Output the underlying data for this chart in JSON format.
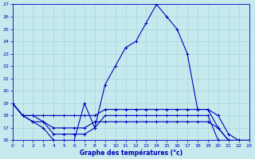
{
  "title": "Graphe des températures (°c)",
  "bg_color": "#c5eaed",
  "grid_color": "#aad4d8",
  "line_color": "#0000bb",
  "text_color": "#0000bb",
  "xlim": [
    0,
    23
  ],
  "ylim": [
    16,
    27
  ],
  "yticks": [
    16,
    17,
    18,
    19,
    20,
    21,
    22,
    23,
    24,
    25,
    26,
    27
  ],
  "xticks": [
    0,
    1,
    2,
    3,
    4,
    5,
    6,
    7,
    8,
    9,
    10,
    11,
    12,
    13,
    14,
    15,
    16,
    17,
    18,
    19,
    20,
    21,
    22,
    23
  ],
  "series": [
    {
      "x": [
        0,
        1,
        2,
        3,
        4,
        5,
        6,
        7,
        8,
        9,
        10,
        11,
        12,
        13,
        14,
        15,
        16,
        17,
        18,
        19,
        20,
        21,
        22,
        23
      ],
      "y": [
        19,
        18,
        17.5,
        17,
        16,
        16,
        16,
        19,
        17,
        20.5,
        22.0,
        23.5,
        24.0,
        25.5,
        27.0,
        26.0,
        25.0,
        23.0,
        18.5,
        18.5,
        17.0,
        16.0,
        16.0,
        16.0
      ]
    },
    {
      "x": [
        0,
        1,
        2,
        3,
        4,
        5,
        6,
        7,
        8,
        9,
        10,
        11,
        12,
        13,
        14,
        15,
        16,
        17,
        18,
        19,
        20,
        21,
        22,
        23
      ],
      "y": [
        19,
        18,
        17.5,
        17.5,
        17.0,
        17.0,
        17.0,
        17.0,
        17.5,
        17.5,
        17.5,
        17.5,
        17.5,
        17.5,
        17.5,
        17.5,
        17.5,
        17.5,
        17.5,
        17.5,
        17.0,
        16.0,
        16.0,
        16.0
      ]
    },
    {
      "x": [
        0,
        1,
        2,
        3,
        4,
        5,
        6,
        7,
        8,
        9,
        10,
        11,
        12,
        13,
        14,
        15,
        16,
        17,
        18,
        19,
        20,
        21,
        22,
        23
      ],
      "y": [
        19,
        18,
        18.0,
        17.5,
        16.5,
        16.5,
        16.5,
        16.5,
        17.0,
        18.0,
        18.0,
        18.0,
        18.0,
        18.0,
        18.0,
        18.0,
        18.0,
        18.0,
        18.0,
        18.0,
        16.0,
        16.0,
        16.0,
        16.0
      ]
    },
    {
      "x": [
        0,
        1,
        2,
        3,
        4,
        5,
        6,
        7,
        8,
        9,
        10,
        11,
        12,
        13,
        14,
        15,
        16,
        17,
        18,
        19,
        20,
        21,
        22,
        23
      ],
      "y": [
        19,
        18,
        18.0,
        18.0,
        18.0,
        18.0,
        18.0,
        18.0,
        18.0,
        18.5,
        18.5,
        18.5,
        18.5,
        18.5,
        18.5,
        18.5,
        18.5,
        18.5,
        18.5,
        18.5,
        18.0,
        16.5,
        16.0,
        16.0
      ]
    }
  ]
}
